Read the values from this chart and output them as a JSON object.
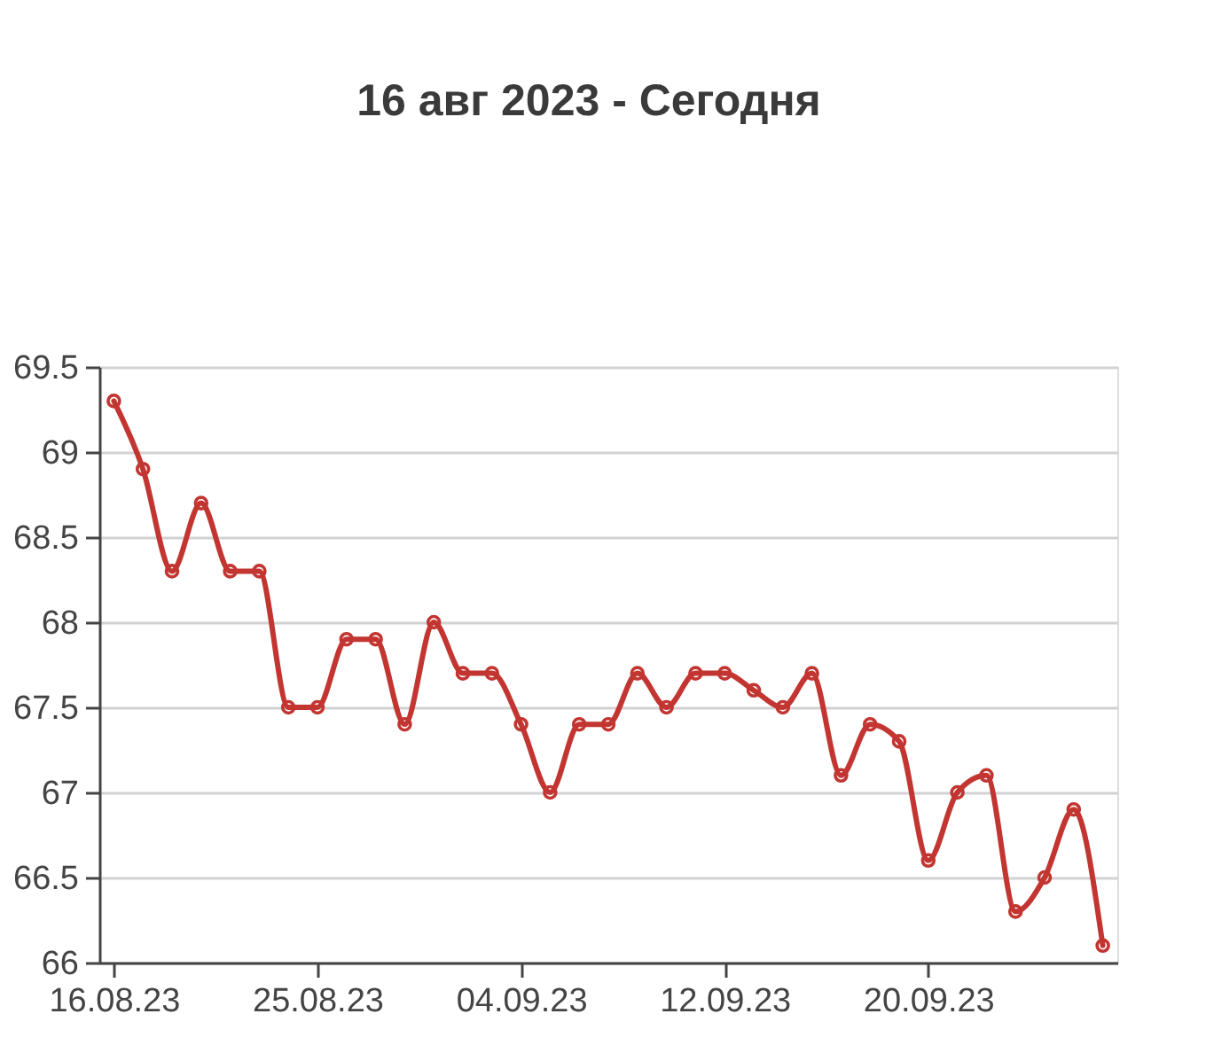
{
  "chart_data": {
    "type": "line",
    "title": "16 авг 2023 - Сегодня",
    "categories": [
      "16.08.23",
      null,
      null,
      null,
      null,
      null,
      null,
      "25.08.23",
      null,
      null,
      null,
      null,
      null,
      null,
      "04.09.23",
      null,
      null,
      null,
      null,
      null,
      null,
      "12.09.23",
      null,
      null,
      null,
      null,
      null,
      null,
      "20.09.23",
      null,
      null,
      null,
      null,
      null,
      null
    ],
    "series": [
      {
        "color": "#c23531",
        "values": [
          69.3,
          68.9,
          68.3,
          68.7,
          68.3,
          68.3,
          67.5,
          67.5,
          67.9,
          67.9,
          67.4,
          68.0,
          67.7,
          67.7,
          67.4,
          67.0,
          67.4,
          67.4,
          67.7,
          67.5,
          67.7,
          67.7,
          67.6,
          67.5,
          67.7,
          67.1,
          67.4,
          67.3,
          66.6,
          67.0,
          67.1,
          66.3,
          66.5,
          66.9,
          66.1
        ]
      }
    ],
    "ylim": [
      66,
      69.5
    ],
    "yticks": [
      66,
      66.5,
      67,
      67.5,
      68,
      68.5,
      69,
      69.5
    ],
    "grid": "y",
    "marker": "circle",
    "line_style": "solid"
  }
}
